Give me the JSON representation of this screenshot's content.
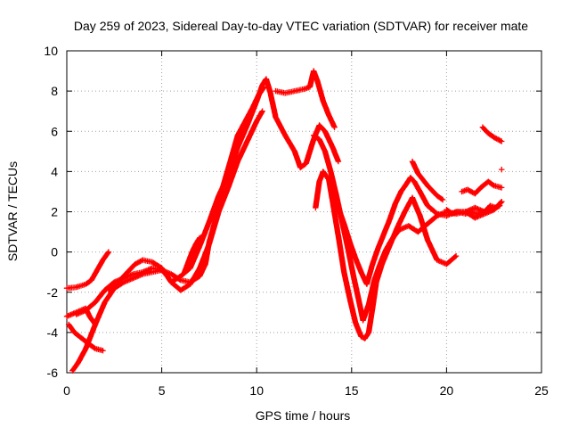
{
  "chart_data": {
    "type": "scatter",
    "title": "Day 259 of 2023, Sidereal Day-to-day VTEC variation (SDTVAR) for receiver mate",
    "xlabel": "GPS time / hours",
    "ylabel": "SDTVAR / TECUs",
    "xlim": [
      0,
      25
    ],
    "ylim": [
      -6,
      10
    ],
    "xticks": [
      "0",
      "5",
      "10",
      "15",
      "20",
      "25"
    ],
    "yticks": [
      "-6",
      "-4",
      "-2",
      "0",
      "2",
      "4",
      "6",
      "8",
      "10"
    ],
    "grid": true,
    "marker": "plus",
    "color": "#ff0000",
    "series": [
      {
        "x": [
          0.0,
          0.5,
          1.0,
          1.3,
          1.6,
          1.9,
          2.2
        ],
        "y": [
          -1.8,
          -1.75,
          -1.6,
          -1.4,
          -0.9,
          -0.4,
          0.0
        ]
      },
      {
        "x": [
          0.0,
          0.5,
          1.0,
          1.2,
          1.5
        ],
        "y": [
          -3.2,
          -3.0,
          -2.8,
          -3.2,
          -3.6
        ]
      },
      {
        "x": [
          0.1,
          0.4,
          0.8,
          1.2,
          1.5,
          1.9
        ],
        "y": [
          -3.6,
          -4.0,
          -4.3,
          -4.6,
          -4.8,
          -4.9
        ]
      },
      {
        "x": [
          0.3,
          0.6,
          1.0,
          1.5,
          2.0,
          2.5,
          3.0,
          3.5,
          4.0,
          4.5,
          5.0,
          5.5,
          6.0,
          6.5,
          7.0,
          7.3,
          7.5,
          7.8,
          8.0,
          8.3,
          8.7,
          9.0,
          9.4,
          9.8,
          10.1,
          10.4
        ],
        "y": [
          -5.9,
          -5.5,
          -4.8,
          -3.6,
          -2.5,
          -1.8,
          -1.5,
          -1.3,
          -1.1,
          -1.0,
          -0.9,
          -1.1,
          -1.4,
          -1.5,
          -1.2,
          -0.6,
          0.5,
          1.5,
          2.5,
          3.5,
          4.8,
          5.8,
          6.5,
          7.2,
          7.8,
          8.2
        ]
      },
      {
        "x": [
          0.5,
          1.0,
          1.5,
          2.0,
          2.5,
          3.0,
          3.5,
          4.0,
          4.5,
          5.0,
          5.3,
          5.5,
          6.0,
          6.5,
          7.0,
          7.5,
          8.0,
          8.5,
          9.0,
          9.5,
          10.0,
          10.3,
          10.5,
          10.7,
          11.0,
          11.5,
          12.0,
          12.3,
          12.6,
          13.0,
          13.3,
          13.6,
          14.0,
          14.3
        ],
        "y": [
          -3.1,
          -2.9,
          -2.5,
          -1.9,
          -1.5,
          -1.3,
          -1.1,
          -1.0,
          -0.8,
          -0.9,
          -1.2,
          -1.5,
          -1.2,
          -0.8,
          0.3,
          1.5,
          2.8,
          3.8,
          5.2,
          6.3,
          7.5,
          8.3,
          8.6,
          8.0,
          6.7,
          5.8,
          5.0,
          4.2,
          4.4,
          5.6,
          6.3,
          6.0,
          5.2,
          4.5
        ]
      },
      {
        "x": [
          2.2,
          2.7,
          3.2,
          3.6,
          4.0,
          4.5,
          5.0,
          5.5,
          6.0,
          6.5,
          7.0,
          7.5,
          8.0,
          8.5,
          9.0,
          9.5,
          10.0,
          10.3
        ],
        "y": [
          -1.9,
          -1.5,
          -1.0,
          -0.6,
          -0.4,
          -0.5,
          -0.8,
          -1.5,
          -1.9,
          -1.6,
          -0.8,
          0.4,
          2.0,
          3.2,
          4.5,
          5.5,
          6.5,
          7.0
        ]
      },
      {
        "x": [
          6.2,
          6.4,
          6.6,
          6.8,
          7.0,
          7.2
        ],
        "y": [
          -1.0,
          -0.5,
          0.0,
          0.4,
          0.7,
          0.8
        ]
      },
      {
        "x": [
          11.0,
          11.5,
          12.0,
          12.5,
          12.8,
          13.0,
          13.2,
          13.5,
          13.8,
          14.1
        ],
        "y": [
          8.0,
          7.9,
          8.0,
          8.1,
          8.2,
          9.0,
          8.5,
          7.5,
          6.8,
          6.2
        ]
      },
      {
        "x": [
          13.1,
          13.3,
          13.5,
          13.8,
          14.0,
          14.3,
          14.6,
          14.9,
          15.2,
          15.5,
          15.7,
          15.9,
          16.1,
          16.3,
          16.6,
          17.0,
          17.4,
          17.8,
          18.2,
          18.6,
          19.0,
          19.5,
          20.0,
          20.5
        ],
        "y": [
          2.2,
          3.5,
          4.0,
          3.6,
          2.5,
          0.8,
          -1.0,
          -2.3,
          -3.5,
          -4.2,
          -4.3,
          -4.0,
          -2.8,
          -1.5,
          -0.6,
          0.3,
          1.2,
          2.0,
          2.7,
          1.8,
          0.6,
          -0.4,
          -0.6,
          -0.2
        ]
      },
      {
        "x": [
          13.0,
          13.3,
          13.6,
          13.9,
          14.2,
          14.5,
          14.8,
          15.1,
          15.4,
          15.6,
          15.9,
          16.2,
          16.5,
          16.8,
          17.1,
          17.5,
          18.0,
          18.5,
          19.0,
          19.5,
          20.0,
          20.5,
          21.0,
          21.5,
          22.0,
          22.5,
          22.9
        ],
        "y": [
          5.8,
          5.6,
          5.0,
          4.0,
          2.8,
          1.5,
          0.2,
          -1.2,
          -2.5,
          -3.4,
          -2.6,
          -1.4,
          -0.6,
          0.1,
          0.6,
          1.1,
          1.3,
          1.0,
          1.4,
          1.8,
          2.0,
          1.9,
          2.0,
          1.7,
          1.9,
          2.1,
          2.5
        ]
      },
      {
        "x": [
          14.0,
          14.3,
          14.6,
          14.9,
          15.2,
          15.5,
          15.8,
          16.1,
          16.4,
          16.7,
          17.0,
          17.3,
          17.6,
          17.9,
          18.1,
          18.3,
          18.6,
          19.0,
          19.5,
          20.0,
          20.5,
          21.0,
          21.5,
          22.0,
          22.4,
          22.8
        ],
        "y": [
          2.6,
          2.2,
          1.4,
          0.5,
          -0.3,
          -1.0,
          -1.6,
          -0.6,
          0.2,
          0.9,
          1.6,
          2.4,
          3.0,
          3.4,
          3.7,
          3.5,
          3.0,
          2.3,
          1.9,
          1.8,
          2.0,
          2.0,
          2.2,
          2.0,
          2.1,
          2.3
        ]
      },
      {
        "x": [
          18.2,
          18.5,
          19.0,
          19.5,
          19.8
        ],
        "y": [
          4.5,
          3.9,
          3.3,
          2.8,
          2.6
        ]
      },
      {
        "x": [
          20.8,
          21.1,
          21.5,
          21.8,
          22.2,
          22.5,
          22.9
        ],
        "y": [
          3.0,
          3.1,
          2.9,
          3.2,
          3.5,
          3.3,
          3.2
        ]
      },
      {
        "x": [
          21.9,
          22.2,
          22.5,
          22.9
        ],
        "y": [
          6.2,
          5.9,
          5.7,
          5.5
        ]
      },
      {
        "x": [
          20.0,
          20.3,
          20.6,
          21.0,
          21.3,
          21.6,
          22.0,
          22.3,
          22.6,
          22.9
        ],
        "y": [
          2.1,
          1.9,
          2.0,
          1.9,
          2.0,
          1.9,
          2.0,
          2.3,
          2.2,
          2.5
        ]
      },
      {
        "x": [
          22.9
        ],
        "y": [
          4.1
        ]
      }
    ]
  }
}
